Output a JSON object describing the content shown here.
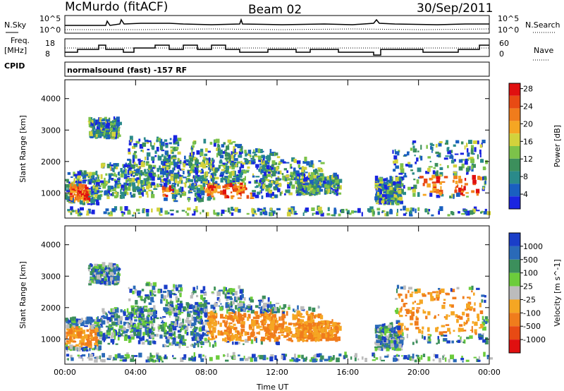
{
  "header": {
    "station": "McMurdo (fitACF)",
    "beam": "Beam 02",
    "date": "30/Sep/2011"
  },
  "panels": {
    "nsky_label": "N.Sky",
    "nsearch_label": "N.Search",
    "freq_label_1": "Freq.",
    "freq_label_2": "[MHz]",
    "nave_label": "Nave",
    "cpid_label": "CPID",
    "cpid_text": "normalsound (fast) -157 RF",
    "nsky_ticks": [
      "10^5",
      "10^0"
    ],
    "nsearch_ticks": [
      "10^5",
      "10^0"
    ],
    "freq_ticks": [
      "18",
      "8"
    ],
    "nave_ticks": [
      "60",
      "0"
    ]
  },
  "chart_data": [
    {
      "type": "heatmap",
      "title": "",
      "xlabel": "Time UT",
      "ylabel": "Slant Range [km]",
      "xlim": [
        0,
        24
      ],
      "ylim": [
        200,
        4600
      ],
      "x_ticks": [
        "00:00",
        "04:00",
        "08:00",
        "12:00",
        "16:00",
        "20:00",
        "00:00"
      ],
      "y_ticks": [
        "1000",
        "2000",
        "3000",
        "4000"
      ],
      "colorbar": {
        "label": "Power [dB]",
        "ticks": [
          "4",
          "8",
          "12",
          "16",
          "20",
          "24",
          "28"
        ],
        "colors": [
          "#1a24e0",
          "#1a5fc0",
          "#2a8a8a",
          "#3c8f5c",
          "#7cc24a",
          "#d2d23c",
          "#f5a623",
          "#f07c1c",
          "#e84a14",
          "#e01010"
        ]
      }
    },
    {
      "type": "heatmap",
      "title": "",
      "xlabel": "Time UT",
      "ylabel": "Slant Range [km]",
      "xlim": [
        0,
        24
      ],
      "ylim": [
        200,
        4600
      ],
      "x_ticks": [
        "00:00",
        "04:00",
        "08:00",
        "12:00",
        "16:00",
        "20:00",
        "00:00"
      ],
      "y_ticks": [
        "1000",
        "2000",
        "3000",
        "4000"
      ],
      "colorbar": {
        "label": "Velocity [m s^-1]",
        "ticks": [
          "1000",
          "500",
          "100",
          "25",
          "-25",
          "-100",
          "-500",
          "-1000"
        ],
        "colors": [
          "#1a3ec8",
          "#2a6ab8",
          "#3c8f5c",
          "#6ccc3c",
          "#bcbcbc",
          "#f5a623",
          "#f07c1c",
          "#e84a14",
          "#e01010"
        ]
      }
    }
  ]
}
